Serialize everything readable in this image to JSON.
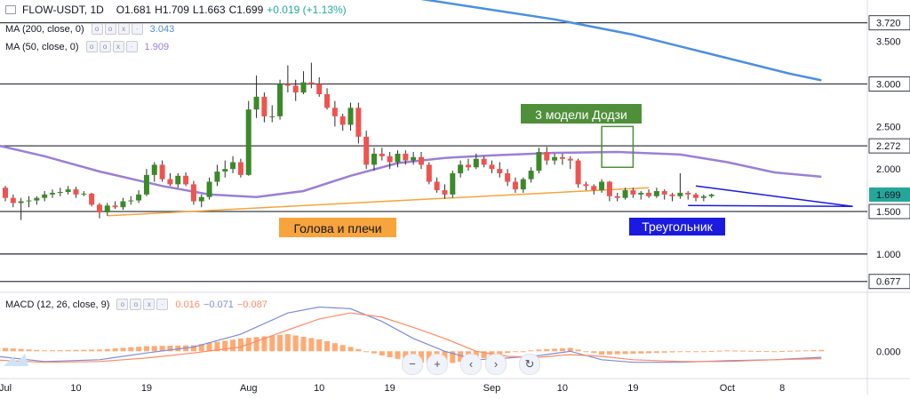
{
  "header": {
    "symbol": "FLOW-USDT, 1D",
    "open": "O1.681",
    "high": "H1.709",
    "low": "L1.663",
    "close": "C1.699",
    "change": "+0.019 (+1.13%)"
  },
  "indicators": {
    "ma200_label": "MA (200, close, 0)",
    "ma200_value": "3.043",
    "ma50_label": "MA (50, close, 0)",
    "ma50_value": "1.909",
    "macd_label": "MACD (12, 26, close, 9)",
    "macd_hist": "0.016",
    "macd_line": "−0.071",
    "macd_signal": "−0.087"
  },
  "colors": {
    "up": "#26a69a",
    "candle_up": "#3b8a2a",
    "down": "#ef5350",
    "ma200": "#4a90e2",
    "ma50": "#9c7fd6",
    "orange": "#f7a43c",
    "macd_line": "#7f8cd8",
    "signal_line": "#ff8a65",
    "hist": "#ff9b5c"
  },
  "chart_data": {
    "type": "candlestick",
    "y_axis_ticks": [
      "3.500",
      "3.000",
      "2.500",
      "2.000",
      "1.500",
      "1.000"
    ],
    "ylim": [
      0.58,
      3.8
    ],
    "price_labels": [
      {
        "value": 3.72,
        "text": "3.720",
        "style": "box"
      },
      {
        "value": 3.0,
        "text": "3.000",
        "style": "box"
      },
      {
        "value": 2.272,
        "text": "2.272",
        "style": "box"
      },
      {
        "value": 1.699,
        "text": "1.699",
        "style": "current"
      },
      {
        "value": 1.5,
        "text": "1.500",
        "style": "box"
      },
      {
        "value": 0.677,
        "text": "0.677",
        "style": "box"
      }
    ],
    "horizontal_levels": [
      3.72,
      3.0,
      2.272,
      1.5,
      1.0,
      0.677
    ],
    "x_labels": [
      {
        "day": 0,
        "text": "Jul"
      },
      {
        "day": 9,
        "text": "10"
      },
      {
        "day": 18,
        "text": "19"
      },
      {
        "day": 31,
        "text": "Aug"
      },
      {
        "day": 40,
        "text": "10"
      },
      {
        "day": 49,
        "text": "19"
      },
      {
        "day": 62,
        "text": "Sep"
      },
      {
        "day": 71,
        "text": "10"
      },
      {
        "day": 80,
        "text": "19"
      },
      {
        "day": 92,
        "text": "Oct"
      },
      {
        "day": 99,
        "text": "8"
      }
    ],
    "candles": [
      [
        1.78,
        1.8,
        1.62,
        1.66
      ],
      [
        1.66,
        1.7,
        1.55,
        1.6
      ],
      [
        1.6,
        1.66,
        1.4,
        1.62
      ],
      [
        1.62,
        1.68,
        1.55,
        1.63
      ],
      [
        1.63,
        1.68,
        1.58,
        1.66
      ],
      [
        1.66,
        1.74,
        1.62,
        1.7
      ],
      [
        1.7,
        1.76,
        1.66,
        1.72
      ],
      [
        1.72,
        1.78,
        1.68,
        1.73
      ],
      [
        1.73,
        1.8,
        1.7,
        1.76
      ],
      [
        1.76,
        1.79,
        1.66,
        1.7
      ],
      [
        1.7,
        1.74,
        1.68,
        1.71
      ],
      [
        1.71,
        1.72,
        1.56,
        1.58
      ],
      [
        1.58,
        1.6,
        1.42,
        1.49
      ],
      [
        1.49,
        1.6,
        1.45,
        1.57
      ],
      [
        1.57,
        1.62,
        1.53,
        1.55
      ],
      [
        1.55,
        1.66,
        1.52,
        1.62
      ],
      [
        1.62,
        1.68,
        1.58,
        1.63
      ],
      [
        1.63,
        1.75,
        1.6,
        1.7
      ],
      [
        1.7,
        2.0,
        1.68,
        1.93
      ],
      [
        1.93,
        2.08,
        1.85,
        2.05
      ],
      [
        2.05,
        2.1,
        1.85,
        1.88
      ],
      [
        1.88,
        1.95,
        1.8,
        1.82
      ],
      [
        1.82,
        1.95,
        1.78,
        1.92
      ],
      [
        1.92,
        1.96,
        1.8,
        1.82
      ],
      [
        1.82,
        1.86,
        1.58,
        1.62
      ],
      [
        1.62,
        1.7,
        1.55,
        1.67
      ],
      [
        1.67,
        1.9,
        1.64,
        1.85
      ],
      [
        1.85,
        2.05,
        1.8,
        1.97
      ],
      [
        1.97,
        2.1,
        1.9,
        2.0
      ],
      [
        2.0,
        2.15,
        1.95,
        2.08
      ],
      [
        2.08,
        2.12,
        1.9,
        1.93
      ],
      [
        1.93,
        2.8,
        1.92,
        2.7
      ],
      [
        2.7,
        3.1,
        2.6,
        2.85
      ],
      [
        2.85,
        2.9,
        2.55,
        2.62
      ],
      [
        2.62,
        2.75,
        2.55,
        2.62
      ],
      [
        2.62,
        3.05,
        2.58,
        3.0
      ],
      [
        3.0,
        3.22,
        2.9,
        2.98
      ],
      [
        2.98,
        3.05,
        2.8,
        2.9
      ],
      [
        2.9,
        3.15,
        2.88,
        3.02
      ],
      [
        3.02,
        3.25,
        2.95,
        3.0
      ],
      [
        3.0,
        3.08,
        2.85,
        2.88
      ],
      [
        2.88,
        2.95,
        2.7,
        2.72
      ],
      [
        2.72,
        2.8,
        2.5,
        2.62
      ],
      [
        2.62,
        2.65,
        2.45,
        2.52
      ],
      [
        2.52,
        2.78,
        2.45,
        2.72
      ],
      [
        2.72,
        2.78,
        2.3,
        2.38
      ],
      [
        2.38,
        2.45,
        2.0,
        2.05
      ],
      [
        2.05,
        2.25,
        1.98,
        2.18
      ],
      [
        2.18,
        2.25,
        2.1,
        2.15
      ],
      [
        2.15,
        2.2,
        2.0,
        2.08
      ],
      [
        2.08,
        2.22,
        2.02,
        2.18
      ],
      [
        2.18,
        2.22,
        2.05,
        2.1
      ],
      [
        2.1,
        2.2,
        2.05,
        2.14
      ],
      [
        2.14,
        2.2,
        2.0,
        2.05
      ],
      [
        2.05,
        2.08,
        1.82,
        1.85
      ],
      [
        1.85,
        1.9,
        1.72,
        1.75
      ],
      [
        1.75,
        1.82,
        1.65,
        1.7
      ],
      [
        1.7,
        1.98,
        1.66,
        1.95
      ],
      [
        1.95,
        2.1,
        1.9,
        2.05
      ],
      [
        2.05,
        2.12,
        1.98,
        2.02
      ],
      [
        2.02,
        2.18,
        2.0,
        2.12
      ],
      [
        2.12,
        2.15,
        2.02,
        2.05
      ],
      [
        2.05,
        2.1,
        1.95,
        2.0
      ],
      [
        2.0,
        2.08,
        1.9,
        1.95
      ],
      [
        1.95,
        2.0,
        1.8,
        1.85
      ],
      [
        1.85,
        1.9,
        1.72,
        1.76
      ],
      [
        1.76,
        1.9,
        1.72,
        1.88
      ],
      [
        1.88,
        2.02,
        1.84,
        1.98
      ],
      [
        1.98,
        2.25,
        1.95,
        2.2
      ],
      [
        2.2,
        2.26,
        2.05,
        2.1
      ],
      [
        2.1,
        2.18,
        2.05,
        2.14
      ],
      [
        2.14,
        2.18,
        2.05,
        2.12
      ],
      [
        2.12,
        2.15,
        2.0,
        2.1
      ],
      [
        2.1,
        2.12,
        1.78,
        1.82
      ],
      [
        1.82,
        1.85,
        1.75,
        1.8
      ],
      [
        1.8,
        1.82,
        1.7,
        1.75
      ],
      [
        1.75,
        1.88,
        1.72,
        1.85
      ],
      [
        1.85,
        1.86,
        1.62,
        1.68
      ],
      [
        1.68,
        1.72,
        1.62,
        1.66
      ],
      [
        1.66,
        1.78,
        1.64,
        1.75
      ],
      [
        1.75,
        1.78,
        1.66,
        1.7
      ],
      [
        1.7,
        1.74,
        1.64,
        1.72
      ],
      [
        1.72,
        1.76,
        1.66,
        1.68
      ],
      [
        1.68,
        1.78,
        1.66,
        1.74
      ],
      [
        1.74,
        1.76,
        1.64,
        1.7
      ],
      [
        1.7,
        1.72,
        1.62,
        1.68
      ],
      [
        1.68,
        1.95,
        1.65,
        1.72
      ],
      [
        1.72,
        1.74,
        1.64,
        1.7
      ],
      [
        1.7,
        1.72,
        1.62,
        1.66
      ],
      [
        1.66,
        1.7,
        1.62,
        1.68
      ],
      [
        1.68,
        1.71,
        1.66,
        1.699
      ]
    ],
    "ma200": [
      [
        53,
        4.0
      ],
      [
        60,
        3.9
      ],
      [
        70,
        3.76
      ],
      [
        80,
        3.58
      ],
      [
        90,
        3.35
      ],
      [
        100,
        3.12
      ],
      [
        104,
        3.043
      ]
    ],
    "ma50": [
      [
        -2,
        2.3
      ],
      [
        5,
        2.15
      ],
      [
        12,
        1.97
      ],
      [
        20,
        1.8
      ],
      [
        26,
        1.7
      ],
      [
        32,
        1.67
      ],
      [
        38,
        1.74
      ],
      [
        44,
        1.92
      ],
      [
        50,
        2.07
      ],
      [
        56,
        2.13
      ],
      [
        62,
        2.16
      ],
      [
        70,
        2.19
      ],
      [
        78,
        2.2
      ],
      [
        86,
        2.17
      ],
      [
        92,
        2.08
      ],
      [
        98,
        1.96
      ],
      [
        104,
        1.909
      ]
    ],
    "macd_line": [
      [
        -2,
        -0.05
      ],
      [
        5,
        -0.12
      ],
      [
        12,
        -0.1
      ],
      [
        18,
        -0.02
      ],
      [
        24,
        0.05
      ],
      [
        30,
        0.2
      ],
      [
        36,
        0.45
      ],
      [
        40,
        0.52
      ],
      [
        44,
        0.5
      ],
      [
        48,
        0.35
      ],
      [
        52,
        0.15
      ],
      [
        56,
        0.0
      ],
      [
        60,
        -0.1
      ],
      [
        64,
        -0.08
      ],
      [
        68,
        -0.05
      ],
      [
        72,
        0.0
      ],
      [
        76,
        -0.1
      ],
      [
        80,
        -0.13
      ],
      [
        86,
        -0.13
      ],
      [
        92,
        -0.11
      ],
      [
        98,
        -0.1
      ],
      [
        104,
        -0.071
      ]
    ],
    "signal_line": [
      [
        -2,
        -0.1
      ],
      [
        5,
        -0.13
      ],
      [
        12,
        -0.12
      ],
      [
        18,
        -0.08
      ],
      [
        24,
        -0.02
      ],
      [
        30,
        0.05
      ],
      [
        36,
        0.25
      ],
      [
        40,
        0.38
      ],
      [
        44,
        0.45
      ],
      [
        48,
        0.4
      ],
      [
        52,
        0.28
      ],
      [
        56,
        0.15
      ],
      [
        60,
        0.0
      ],
      [
        64,
        -0.06
      ],
      [
        68,
        -0.07
      ],
      [
        72,
        -0.04
      ],
      [
        76,
        -0.06
      ],
      [
        80,
        -0.1
      ],
      [
        86,
        -0.12
      ],
      [
        92,
        -0.12
      ],
      [
        98,
        -0.1
      ],
      [
        104,
        -0.087
      ]
    ],
    "macd_ylim": [
      -0.3,
      0.65
    ],
    "macd_ticks": [
      "0.000"
    ],
    "annotations": [
      {
        "text": "3 модели Додзи",
        "bg": "#4f8f3a",
        "fg": "#ffffff"
      },
      {
        "text": "Голова и плечи",
        "bg": "#f7a43c",
        "fg": "#131722"
      },
      {
        "text": "Треугольник",
        "bg": "#1a1ae0",
        "fg": "#ffffff"
      }
    ],
    "orange_trendline": [
      [
        13,
        1.45
      ],
      [
        82,
        1.78
      ]
    ],
    "triangle": {
      "top": [
        [
          88,
          1.8
        ],
        [
          108,
          1.56
        ]
      ],
      "bottom": [
        [
          87,
          1.57
        ],
        [
          108,
          1.56
        ]
      ]
    },
    "doji_box": {
      "from_day": 76,
      "to_day": 80,
      "low": 2.02,
      "high": 2.5
    }
  },
  "controls": {
    "zoom_out": "−",
    "zoom_in": "+",
    "scroll_left": "‹",
    "scroll_right": "›",
    "reset": "↻"
  }
}
